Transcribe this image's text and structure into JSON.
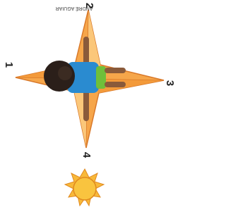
{
  "credit": "ANDRÉ AGUIAR",
  "points": [
    {
      "label": "1"
    },
    {
      "label": "2"
    },
    {
      "label": "3"
    },
    {
      "label": "4"
    }
  ]
}
